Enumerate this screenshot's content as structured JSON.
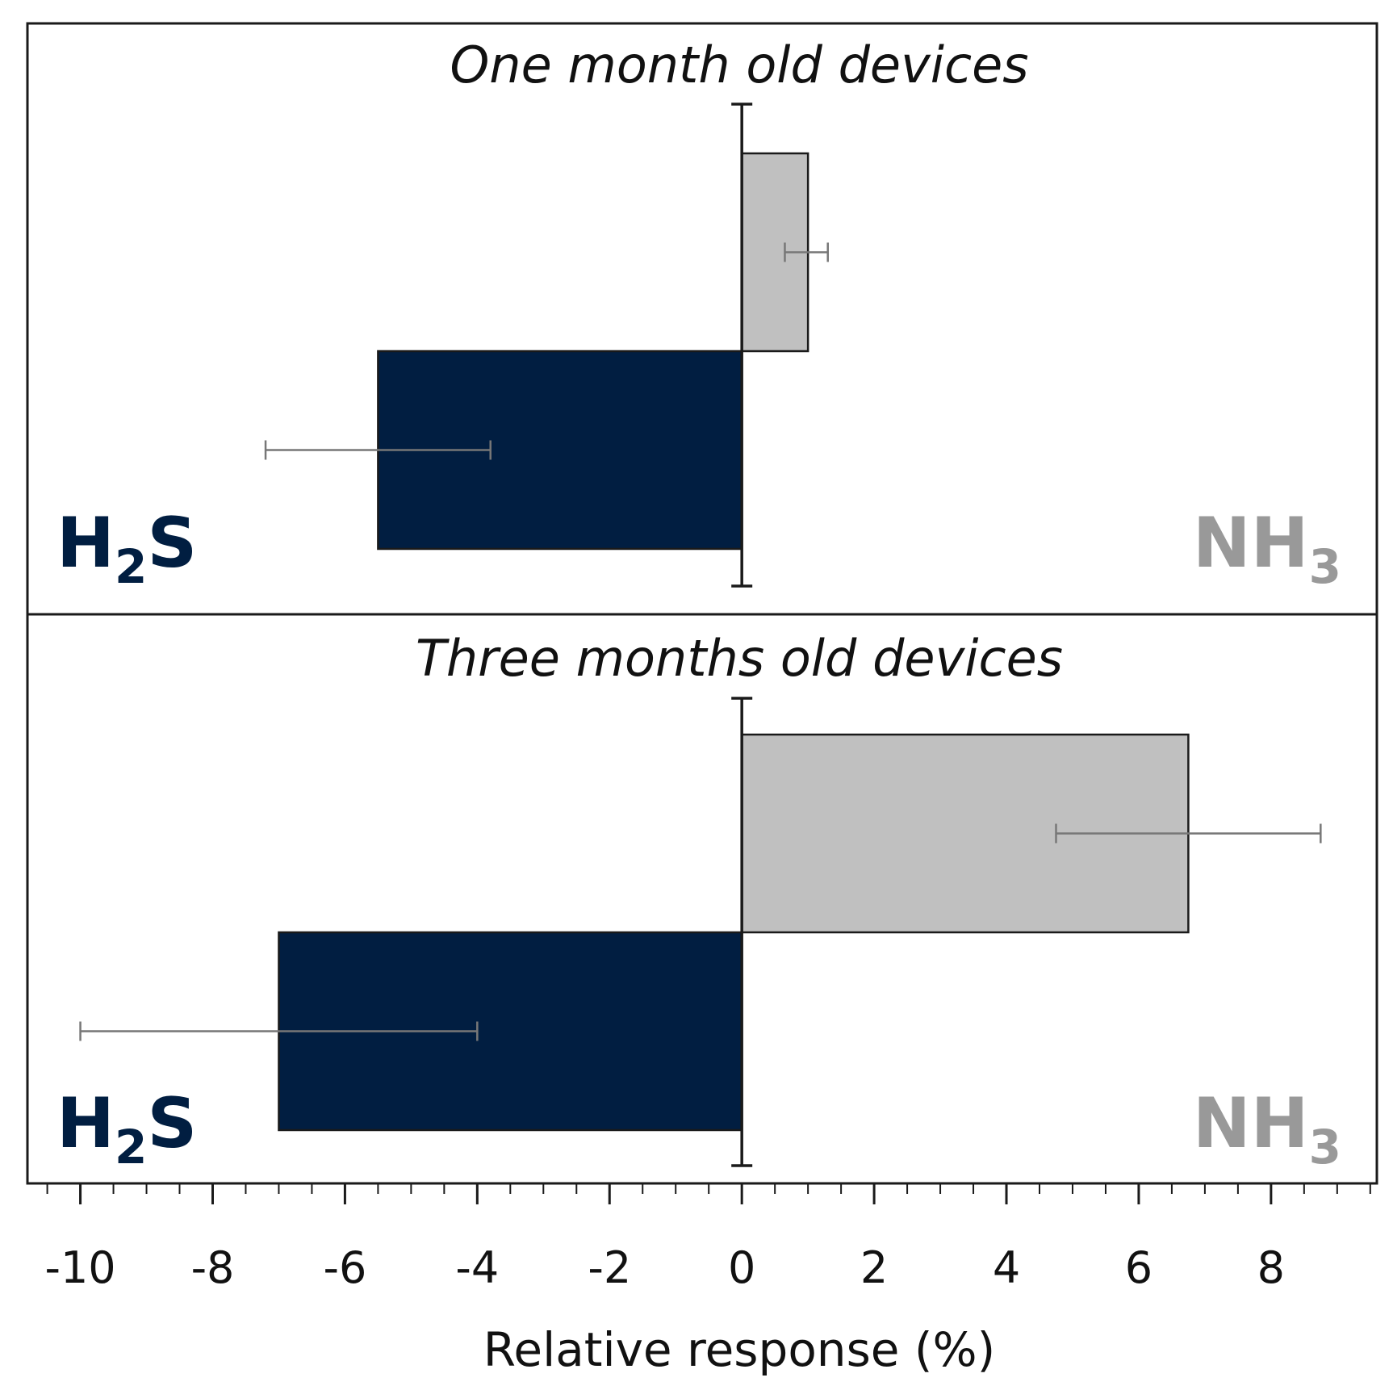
{
  "chart_data": {
    "type": "bar",
    "orientation": "horizontal",
    "xlabel": "Relative response (%)",
    "xlim": [
      -10.8,
      9.6
    ],
    "xticks": [
      -10,
      -8,
      -6,
      -4,
      -2,
      0,
      2,
      4,
      6,
      8
    ],
    "grid": false,
    "colors": {
      "H2S": "#011e41",
      "NH3": "#c0c0c0",
      "error_bar": "#777777",
      "axis": "#1a1a1a"
    },
    "panels": [
      {
        "title": "One month old devices",
        "label_left": {
          "main": "H",
          "sub": "2",
          "tail": "S"
        },
        "label_right": {
          "main": "NH",
          "sub": "3"
        },
        "bars": [
          {
            "series": "NH3",
            "value": 1.0,
            "err_low": 0.65,
            "err_high": 1.3
          },
          {
            "series": "H2S",
            "value": -5.5,
            "err_low": -7.2,
            "err_high": -3.8
          }
        ]
      },
      {
        "title": "Three months old devices",
        "label_left": {
          "main": "H",
          "sub": "2",
          "tail": "S"
        },
        "label_right": {
          "main": "NH",
          "sub": "3"
        },
        "bars": [
          {
            "series": "NH3",
            "value": 6.75,
            "err_low": 4.75,
            "err_high": 8.75
          },
          {
            "series": "H2S",
            "value": -7.0,
            "err_low": -10.0,
            "err_high": -4.0
          }
        ]
      }
    ]
  }
}
